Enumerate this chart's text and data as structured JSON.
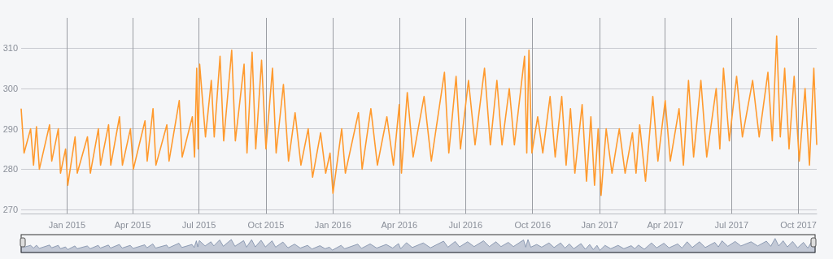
{
  "chart_data": {
    "type": "line",
    "x": [
      "2014-10-30",
      "2014-11-03",
      "2014-11-12",
      "2014-11-16",
      "2014-11-20",
      "2014-11-24",
      "2014-12-08",
      "2014-12-11",
      "2014-12-20",
      "2014-12-23",
      "2014-12-30",
      "2015-01-02",
      "2015-01-12",
      "2015-01-15",
      "2015-01-29",
      "2015-02-02",
      "2015-02-13",
      "2015-02-16",
      "2015-02-27",
      "2015-03-02",
      "2015-03-14",
      "2015-03-18",
      "2015-03-29",
      "2015-04-02",
      "2015-04-18",
      "2015-04-21",
      "2015-04-29",
      "2015-05-03",
      "2015-05-18",
      "2015-05-21",
      "2015-06-04",
      "2015-06-08",
      "2015-06-22",
      "2015-06-25",
      "2015-06-28",
      "2015-06-30",
      "2015-07-02",
      "2015-07-10",
      "2015-07-18",
      "2015-07-22",
      "2015-07-30",
      "2015-08-04",
      "2015-08-15",
      "2015-08-20",
      "2015-09-01",
      "2015-09-05",
      "2015-09-12",
      "2015-09-17",
      "2015-09-25",
      "2015-10-01",
      "2015-10-10",
      "2015-10-15",
      "2015-10-25",
      "2015-11-01",
      "2015-11-10",
      "2015-11-18",
      "2015-11-28",
      "2015-12-04",
      "2015-12-15",
      "2015-12-22",
      "2015-12-28",
      "2016-01-01",
      "2016-01-13",
      "2016-01-18",
      "2016-02-05",
      "2016-02-10",
      "2016-02-22",
      "2016-03-02",
      "2016-03-15",
      "2016-03-24",
      "2016-04-01",
      "2016-04-04",
      "2016-04-12",
      "2016-04-20",
      "2016-05-05",
      "2016-05-15",
      "2016-06-02",
      "2016-06-08",
      "2016-06-18",
      "2016-06-24",
      "2016-07-05",
      "2016-07-14",
      "2016-07-27",
      "2016-08-04",
      "2016-08-13",
      "2016-08-20",
      "2016-08-30",
      "2016-09-06",
      "2016-09-20",
      "2016-09-23",
      "2016-09-26",
      "2016-09-30",
      "2016-10-08",
      "2016-10-15",
      "2016-10-25",
      "2016-11-01",
      "2016-11-10",
      "2016-11-16",
      "2016-11-22",
      "2016-11-28",
      "2016-12-08",
      "2016-12-14",
      "2016-12-20",
      "2016-12-25",
      "2016-12-30",
      "2017-01-03",
      "2017-01-10",
      "2017-01-18",
      "2017-01-28",
      "2017-02-05",
      "2017-02-15",
      "2017-02-20",
      "2017-02-25",
      "2017-03-05",
      "2017-03-15",
      "2017-03-22",
      "2017-04-01",
      "2017-04-08",
      "2017-04-20",
      "2017-04-26",
      "2017-05-03",
      "2017-05-10",
      "2017-05-20",
      "2017-05-28",
      "2017-06-10",
      "2017-06-15",
      "2017-06-20",
      "2017-06-28",
      "2017-07-08",
      "2017-07-16",
      "2017-07-30",
      "2017-08-08",
      "2017-08-20",
      "2017-08-26",
      "2017-09-01",
      "2017-09-06",
      "2017-09-12",
      "2017-09-18",
      "2017-09-25",
      "2017-10-02",
      "2017-10-10",
      "2017-10-16",
      "2017-10-22",
      "2017-10-26"
    ],
    "series": [
      {
        "color": "#ff9a2e",
        "values": [
          295,
          284,
          290,
          281,
          290.5,
          280,
          291,
          282,
          290,
          279,
          285,
          276,
          288,
          279,
          288,
          279,
          290,
          281,
          291,
          281,
          293,
          281,
          290,
          280,
          292,
          282,
          295,
          281,
          291,
          282,
          297,
          283,
          293,
          283,
          305,
          285,
          306,
          288,
          302,
          288,
          308,
          287,
          309.5,
          287,
          306,
          284,
          309,
          285,
          307,
          285,
          305,
          284,
          301,
          282,
          294,
          281,
          290,
          278,
          289,
          279,
          284,
          274,
          290,
          279,
          294,
          280,
          295,
          281,
          293,
          281,
          296,
          279,
          299,
          283,
          298,
          282,
          304,
          284,
          303,
          285,
          302,
          286,
          305,
          286,
          302,
          286,
          300,
          286,
          308,
          284,
          309.5,
          284,
          293,
          284,
          298,
          283,
          298,
          281,
          295,
          279,
          296,
          277,
          293,
          276,
          290,
          273.5,
          290,
          279,
          290,
          279,
          289,
          279,
          291,
          277,
          298,
          282,
          297,
          282,
          295,
          281,
          302,
          283,
          302,
          283,
          300,
          285,
          305,
          287,
          303,
          288,
          302,
          288,
          304,
          287,
          313,
          288,
          305,
          285,
          303,
          282,
          300,
          281,
          305,
          286
        ]
      }
    ],
    "xlim": [
      "2014-10-30",
      "2017-10-26"
    ],
    "xticks": [
      {
        "value": "2015-01-01",
        "label": "Jan 2015"
      },
      {
        "value": "2015-04-01",
        "label": "Apr 2015"
      },
      {
        "value": "2015-07-01",
        "label": "Jul 2015"
      },
      {
        "value": "2015-10-01",
        "label": "Oct 2015"
      },
      {
        "value": "2016-01-01",
        "label": "Jan 2016"
      },
      {
        "value": "2016-04-01",
        "label": "Apr 2016"
      },
      {
        "value": "2016-07-01",
        "label": "Jul 2016"
      },
      {
        "value": "2016-10-01",
        "label": "Oct 2016"
      },
      {
        "value": "2017-01-01",
        "label": "Jan 2017"
      },
      {
        "value": "2017-04-01",
        "label": "Apr 2017"
      },
      {
        "value": "2017-07-01",
        "label": "Jul 2017"
      },
      {
        "value": "2017-10-01",
        "label": "Oct 2017"
      }
    ],
    "ylim": [
      269,
      317.5
    ],
    "yticks": [
      270,
      280,
      290,
      300,
      310
    ],
    "grid": true,
    "marker": "none",
    "line_style": "solid"
  }
}
